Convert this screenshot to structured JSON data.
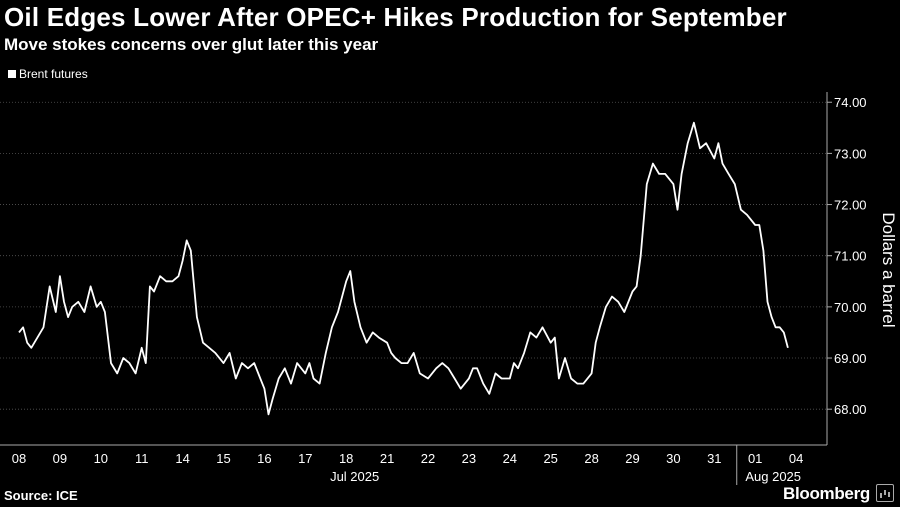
{
  "title": "Oil Edges Lower After OPEC+ Hikes Production for September",
  "subtitle": "Move stokes concerns over glut later this year",
  "source": "Source: ICE",
  "brand": "Bloomberg",
  "chart_data": {
    "type": "line",
    "title": "Oil Edges Lower After OPEC+ Hikes Production for September",
    "subtitle": "Move stokes concerns over glut later this year",
    "ylabel": "Dollars a barrel",
    "ylim": [
      67.3,
      74.2
    ],
    "yticks": [
      "68.00",
      "69.00",
      "70.00",
      "71.00",
      "72.00",
      "73.00",
      "74.00"
    ],
    "grid": true,
    "legend_position": "top-left",
    "axis_side": "right",
    "x_tick_labels": [
      "08",
      "09",
      "10",
      "11",
      "14",
      "15",
      "16",
      "17",
      "18",
      "21",
      "22",
      "23",
      "24",
      "25",
      "28",
      "29",
      "30",
      "31",
      "01",
      "04"
    ],
    "x_group_labels": [
      {
        "label": "Jul 2025",
        "from": "08",
        "to": "31"
      },
      {
        "label": "Aug 2025",
        "from": "01",
        "to": "04"
      }
    ],
    "series": [
      {
        "name": "Brent futures",
        "color": "#ffffff",
        "x": [
          0,
          0.1,
          0.2,
          0.3,
          0.45,
          0.6,
          0.75,
          0.9,
          1.0,
          1.1,
          1.2,
          1.3,
          1.45,
          1.6,
          1.75,
          1.9,
          2.0,
          2.1,
          2.25,
          2.4,
          2.55,
          2.7,
          2.85,
          3.0,
          3.1,
          3.2,
          3.3,
          3.45,
          3.6,
          3.75,
          3.9,
          4.0,
          4.1,
          4.2,
          4.35,
          4.5,
          4.65,
          4.8,
          5.0,
          5.15,
          5.3,
          5.45,
          5.6,
          5.75,
          5.9,
          6.0,
          6.1,
          6.2,
          6.35,
          6.5,
          6.65,
          6.8,
          7.0,
          7.1,
          7.2,
          7.35,
          7.5,
          7.65,
          7.8,
          8.0,
          8.1,
          8.2,
          8.35,
          8.5,
          8.65,
          8.8,
          9.0,
          9.1,
          9.2,
          9.35,
          9.5,
          9.65,
          9.8,
          10.0,
          10.1,
          10.2,
          10.35,
          10.5,
          10.65,
          10.8,
          11.0,
          11.1,
          11.2,
          11.35,
          11.5,
          11.65,
          11.8,
          12.0,
          12.1,
          12.2,
          12.35,
          12.5,
          12.65,
          12.8,
          13.0,
          13.1,
          13.2,
          13.35,
          13.5,
          13.65,
          13.8,
          14.0,
          14.1,
          14.2,
          14.35,
          14.5,
          14.65,
          14.8,
          15.0,
          15.1,
          15.2,
          15.35,
          15.5,
          15.65,
          15.8,
          16.0,
          16.1,
          16.2,
          16.35,
          16.5,
          16.65,
          16.8,
          17.0,
          17.1,
          17.2,
          17.35,
          17.5,
          17.65,
          17.8,
          18.0,
          18.1,
          18.2,
          18.3,
          18.4,
          18.5,
          18.6,
          18.7,
          18.8
        ],
        "values": [
          69.5,
          69.6,
          69.3,
          69.2,
          69.4,
          69.6,
          70.4,
          69.9,
          70.6,
          70.1,
          69.8,
          70.0,
          70.1,
          69.9,
          70.4,
          70.0,
          70.1,
          69.9,
          68.9,
          68.7,
          69.0,
          68.9,
          68.7,
          69.2,
          68.9,
          70.4,
          70.3,
          70.6,
          70.5,
          70.5,
          70.6,
          70.9,
          71.3,
          71.1,
          69.8,
          69.3,
          69.2,
          69.1,
          68.9,
          69.1,
          68.6,
          68.9,
          68.8,
          68.9,
          68.6,
          68.4,
          67.9,
          68.2,
          68.6,
          68.8,
          68.5,
          68.9,
          68.7,
          68.9,
          68.6,
          68.5,
          69.1,
          69.6,
          69.9,
          70.5,
          70.7,
          70.1,
          69.6,
          69.3,
          69.5,
          69.4,
          69.3,
          69.1,
          69.0,
          68.9,
          68.9,
          69.1,
          68.7,
          68.6,
          68.7,
          68.8,
          68.9,
          68.8,
          68.6,
          68.4,
          68.6,
          68.8,
          68.8,
          68.5,
          68.3,
          68.7,
          68.6,
          68.6,
          68.9,
          68.8,
          69.1,
          69.5,
          69.4,
          69.6,
          69.3,
          69.4,
          68.6,
          69.0,
          68.6,
          68.5,
          68.5,
          68.7,
          69.3,
          69.6,
          70.0,
          70.2,
          70.1,
          69.9,
          70.3,
          70.4,
          71.0,
          72.4,
          72.8,
          72.6,
          72.6,
          72.4,
          71.9,
          72.6,
          73.2,
          73.6,
          73.1,
          73.2,
          72.9,
          73.2,
          72.8,
          72.6,
          72.4,
          71.9,
          71.8,
          71.6,
          71.6,
          71.1,
          70.1,
          69.8,
          69.6,
          69.6,
          69.5,
          69.2
        ]
      }
    ]
  }
}
